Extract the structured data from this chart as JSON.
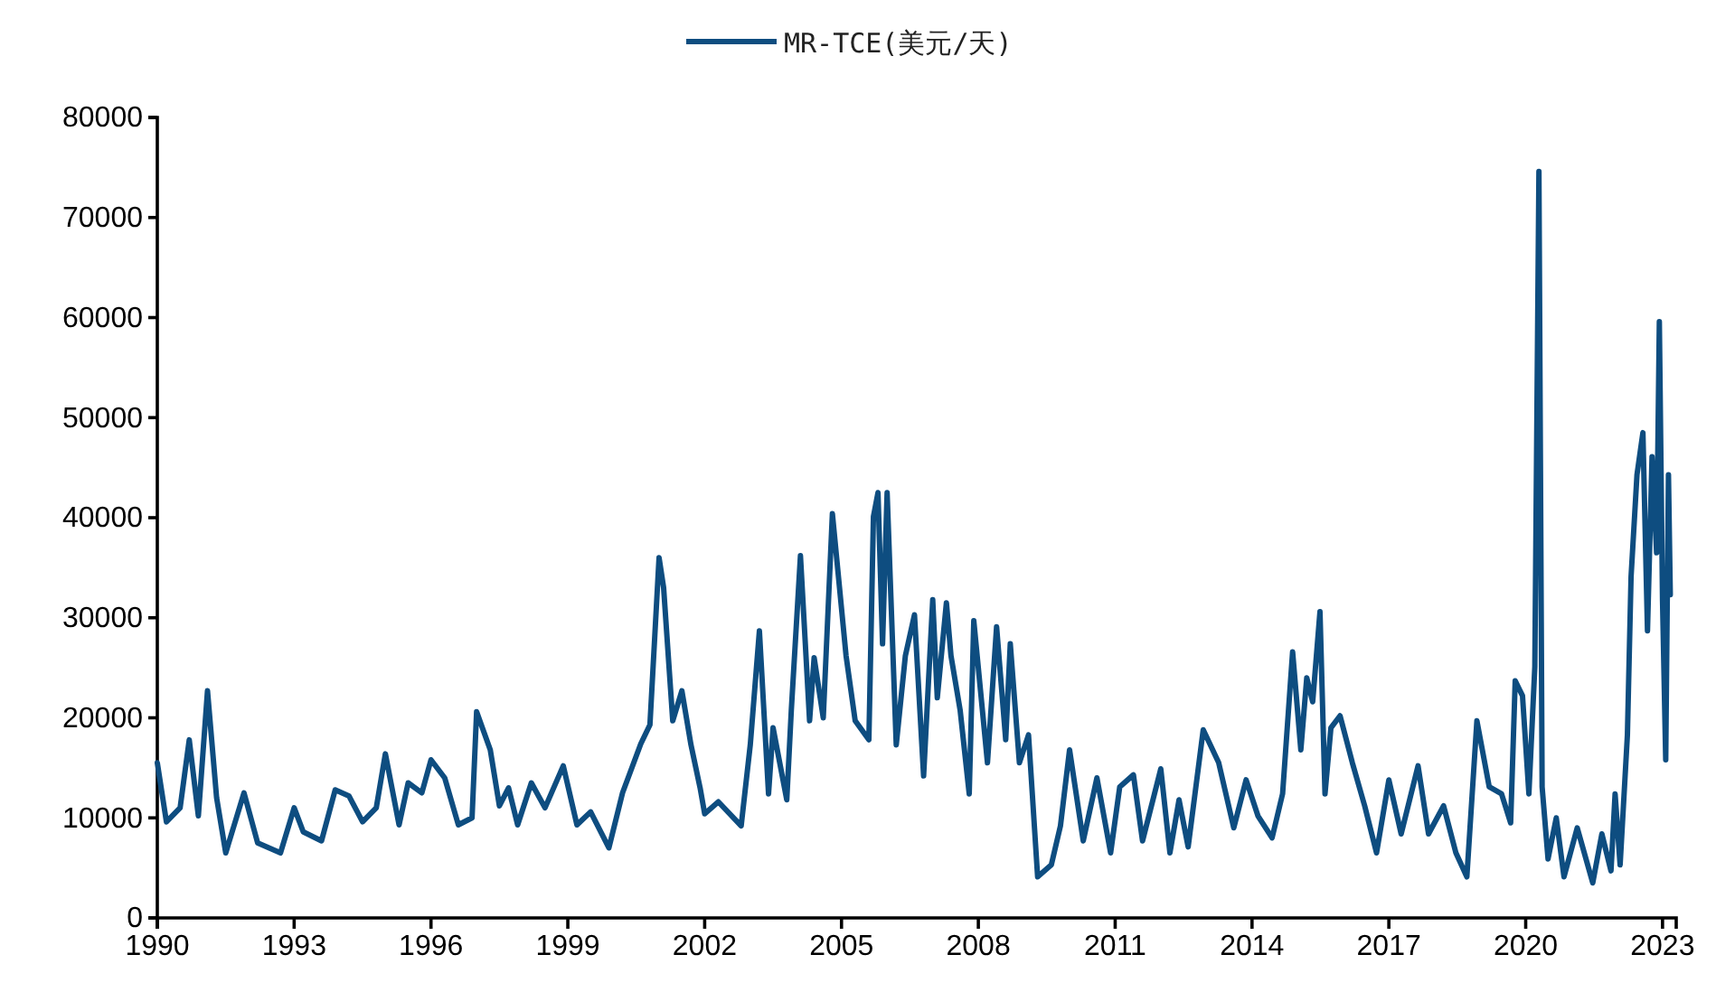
{
  "chart_data": {
    "type": "line",
    "legend": "top",
    "xlim": [
      1990,
      2023.3
    ],
    "xticks": [
      1990,
      1993,
      1996,
      1999,
      2002,
      2005,
      2008,
      2011,
      2014,
      2017,
      2020,
      2023
    ],
    "ylim": [
      0,
      80000
    ],
    "yticks": [
      0,
      10000,
      20000,
      30000,
      40000,
      50000,
      60000,
      70000,
      80000
    ],
    "grid": false,
    "line_style": "solid",
    "marker": "none",
    "series": [
      {
        "name": "MR-TCE(美元/天)",
        "color": "#0e4d80",
        "x": [
          1990,
          1990.2,
          1990.5,
          1990.7,
          1990.9,
          1991.1,
          1991.3,
          1991.5,
          1991.9,
          1992.2,
          1992.7,
          1993,
          1993.2,
          1993.6,
          1993.9,
          1994.2,
          1994.5,
          1994.8,
          1995,
          1995.3,
          1995.5,
          1995.8,
          1996,
          1996.3,
          1996.6,
          1996.9,
          1997,
          1997.3,
          1997.5,
          1997.7,
          1997.9,
          1998.2,
          1998.5,
          1998.9,
          1999.2,
          1999.5,
          1999.9,
          2000.2,
          2000.6,
          2000.8,
          2001,
          2001.1,
          2001.3,
          2001.5,
          2001.7,
          2001.9,
          2002,
          2002.3,
          2002.8,
          2003,
          2003.2,
          2003.4,
          2003.5,
          2003.8,
          2003.9,
          2004.1,
          2004.3,
          2004.4,
          2004.6,
          2004.8,
          2005.1,
          2005.3,
          2005.6,
          2005.7,
          2005.8,
          2005.9,
          2006,
          2006.2,
          2006.4,
          2006.6,
          2006.8,
          2007,
          2007.1,
          2007.3,
          2007.4,
          2007.6,
          2007.8,
          2007.9,
          2008.2,
          2008.4,
          2008.6,
          2008.7,
          2008.9,
          2009.1,
          2009.3,
          2009.6,
          2009.8,
          2010,
          2010.3,
          2010.6,
          2010.9,
          2011.1,
          2011.4,
          2011.6,
          2012,
          2012.2,
          2012.4,
          2012.6,
          2012.93,
          2013.27,
          2013.6,
          2013.87,
          2014.13,
          2014.44,
          2014.67,
          2014.89,
          2015.07,
          2015.2,
          2015.33,
          2015.49,
          2015.6,
          2015.73,
          2015.93,
          2016.2,
          2016.47,
          2016.73,
          2017,
          2017.27,
          2017.64,
          2017.87,
          2018.2,
          2018.47,
          2018.71,
          2018.93,
          2019.2,
          2019.47,
          2019.67,
          2019.77,
          2019.93,
          2020.07,
          2020.2,
          2020.29,
          2020.36,
          2020.49,
          2020.67,
          2020.84,
          2021.13,
          2021.47,
          2021.67,
          2021.87,
          2021.96,
          2022.07,
          2022.23,
          2022.31,
          2022.44,
          2022.57,
          2022.67,
          2022.77,
          2022.87,
          2022.93,
          2023,
          2023.07,
          2023.13,
          2023.17
        ],
        "values": [
          15500,
          9600,
          11000,
          17800,
          10200,
          22700,
          12000,
          6500,
          12500,
          7500,
          6500,
          11000,
          8600,
          7700,
          12800,
          12200,
          9600,
          11000,
          16400,
          9300,
          13500,
          12500,
          15800,
          14000,
          9300,
          10000,
          20600,
          16800,
          11200,
          13000,
          9300,
          13500,
          11000,
          15200,
          9300,
          10600,
          7000,
          12500,
          17400,
          19300,
          36000,
          33000,
          19700,
          22700,
          17300,
          13000,
          10400,
          11600,
          9200,
          17300,
          28700,
          12400,
          19000,
          11800,
          20800,
          36200,
          19700,
          26000,
          20000,
          40400,
          26200,
          19700,
          17800,
          40100,
          42500,
          27400,
          42500,
          17300,
          26200,
          30300,
          14200,
          31800,
          22000,
          31500,
          26200,
          20800,
          12400,
          29700,
          15500,
          29100,
          17800,
          27400,
          15500,
          18300,
          4100,
          5300,
          9200,
          16800,
          7700,
          14000,
          6500,
          13100,
          14300,
          7700,
          14900,
          6500,
          11800,
          7100,
          18800,
          15500,
          9000,
          13800,
          10200,
          8000,
          12400,
          26600,
          16800,
          24000,
          21600,
          30600,
          12400,
          19000,
          20200,
          15500,
          11200,
          6500,
          13800,
          8400,
          15200,
          8400,
          11200,
          6500,
          4100,
          19700,
          13100,
          12400,
          9500,
          23700,
          22200,
          12400,
          25100,
          74600,
          13100,
          5900,
          10000,
          4100,
          9000,
          3500,
          8400,
          4700,
          12400,
          5300,
          18300,
          34100,
          44300,
          48500,
          28700,
          46100,
          36500,
          59600,
          31700,
          15800,
          44300,
          32300
        ]
      }
    ]
  }
}
